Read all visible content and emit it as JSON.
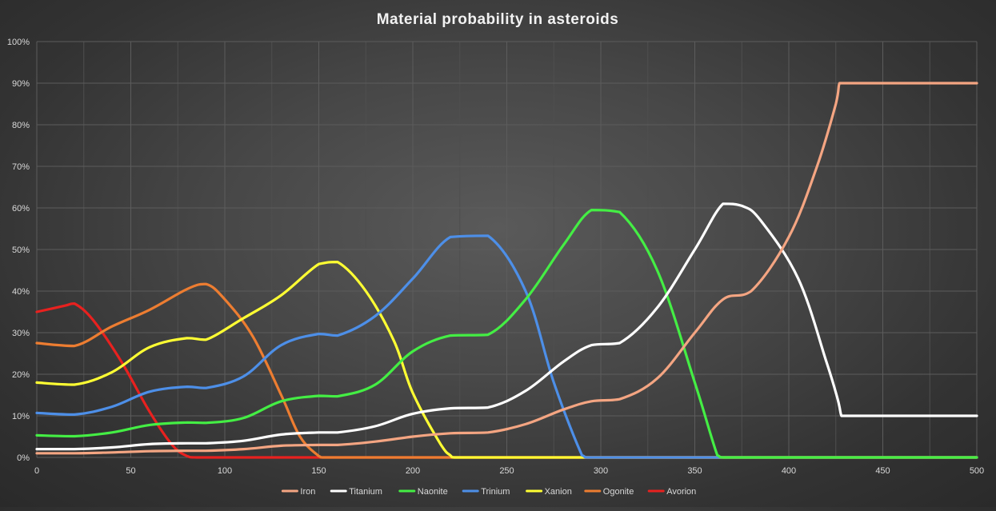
{
  "chart_data": {
    "type": "line",
    "title": "Material probability in asteroids",
    "xlabel": "",
    "ylabel": "",
    "xlim": [
      0,
      500
    ],
    "ylim": [
      0,
      100
    ],
    "x_ticks": [
      "0",
      "50",
      "100",
      "150",
      "200",
      "250",
      "300",
      "350",
      "400",
      "450",
      "500"
    ],
    "y_ticks": [
      "0%",
      "10%",
      "20%",
      "30%",
      "40%",
      "50%",
      "60%",
      "70%",
      "80%",
      "90%",
      "100%"
    ],
    "grid": true,
    "legend_position": "bottom",
    "series": [
      {
        "name": "Iron",
        "color": "#f4a582",
        "points": [
          [
            0,
            1
          ],
          [
            20,
            1
          ],
          [
            40,
            1.2
          ],
          [
            60,
            1.5
          ],
          [
            80,
            1.6
          ],
          [
            90,
            1.6
          ],
          [
            110,
            2
          ],
          [
            130,
            2.8
          ],
          [
            150,
            3
          ],
          [
            160,
            3
          ],
          [
            180,
            3.8
          ],
          [
            200,
            5
          ],
          [
            220,
            5.8
          ],
          [
            240,
            6
          ],
          [
            260,
            8
          ],
          [
            280,
            11.5
          ],
          [
            295,
            13.5
          ],
          [
            310,
            14
          ],
          [
            330,
            19
          ],
          [
            350,
            30
          ],
          [
            365,
            38
          ],
          [
            380,
            40
          ],
          [
            400,
            53
          ],
          [
            415,
            70
          ],
          [
            425,
            85
          ],
          [
            427,
            90
          ],
          [
            430,
            90
          ],
          [
            500,
            90
          ]
        ]
      },
      {
        "name": "Titanium",
        "color": "#ffffff",
        "points": [
          [
            0,
            2
          ],
          [
            20,
            2
          ],
          [
            40,
            2.4
          ],
          [
            60,
            3.2
          ],
          [
            80,
            3.4
          ],
          [
            90,
            3.4
          ],
          [
            110,
            4
          ],
          [
            130,
            5.5
          ],
          [
            150,
            6
          ],
          [
            160,
            6
          ],
          [
            180,
            7.5
          ],
          [
            200,
            10.5
          ],
          [
            220,
            11.8
          ],
          [
            240,
            12
          ],
          [
            260,
            16
          ],
          [
            280,
            23
          ],
          [
            295,
            27
          ],
          [
            310,
            27.5
          ],
          [
            330,
            36
          ],
          [
            350,
            50
          ],
          [
            365,
            61
          ],
          [
            375,
            60.5
          ],
          [
            385,
            57
          ],
          [
            405,
            43
          ],
          [
            420,
            23
          ],
          [
            426,
            14
          ],
          [
            428,
            10
          ],
          [
            430,
            10
          ],
          [
            500,
            10
          ]
        ]
      },
      {
        "name": "Naonite",
        "color": "#44ee44",
        "points": [
          [
            0,
            5.3
          ],
          [
            20,
            5.1
          ],
          [
            40,
            6
          ],
          [
            60,
            7.8
          ],
          [
            80,
            8.4
          ],
          [
            90,
            8.3
          ],
          [
            110,
            9.5
          ],
          [
            130,
            13.5
          ],
          [
            150,
            14.8
          ],
          [
            160,
            14.7
          ],
          [
            180,
            17.5
          ],
          [
            200,
            25.5
          ],
          [
            220,
            29.3
          ],
          [
            240,
            29.5
          ],
          [
            260,
            38
          ],
          [
            280,
            51
          ],
          [
            295,
            59.5
          ],
          [
            310,
            59
          ],
          [
            330,
            45
          ],
          [
            350,
            18
          ],
          [
            362,
            0.5
          ],
          [
            365,
            0
          ],
          [
            500,
            0
          ]
        ]
      },
      {
        "name": "Trinium",
        "color": "#4d8fe8",
        "points": [
          [
            0,
            10.7
          ],
          [
            20,
            10.3
          ],
          [
            40,
            12.2
          ],
          [
            60,
            15.8
          ],
          [
            80,
            17
          ],
          [
            90,
            16.7
          ],
          [
            110,
            19.5
          ],
          [
            130,
            27
          ],
          [
            150,
            29.7
          ],
          [
            160,
            29.3
          ],
          [
            180,
            34
          ],
          [
            200,
            43
          ],
          [
            220,
            53
          ],
          [
            240,
            53.3
          ],
          [
            260,
            40
          ],
          [
            275,
            18
          ],
          [
            290,
            0.5
          ],
          [
            293,
            0
          ],
          [
            500,
            0
          ]
        ]
      },
      {
        "name": "Xanion",
        "color": "#ffff33",
        "points": [
          [
            0,
            18
          ],
          [
            20,
            17.5
          ],
          [
            40,
            20.5
          ],
          [
            60,
            26.5
          ],
          [
            80,
            28.7
          ],
          [
            90,
            28.3
          ],
          [
            110,
            33.5
          ],
          [
            130,
            39
          ],
          [
            150,
            46.5
          ],
          [
            160,
            47
          ],
          [
            175,
            40
          ],
          [
            190,
            28
          ],
          [
            200,
            15.5
          ],
          [
            215,
            3
          ],
          [
            220,
            0.5
          ],
          [
            222,
            0
          ],
          [
            500,
            0
          ]
        ]
      },
      {
        "name": "Ogonite",
        "color": "#ed7d31",
        "points": [
          [
            0,
            27.5
          ],
          [
            20,
            26.8
          ],
          [
            40,
            31.5
          ],
          [
            60,
            35.5
          ],
          [
            80,
            40.5
          ],
          [
            90,
            41.7
          ],
          [
            100,
            38
          ],
          [
            115,
            29
          ],
          [
            130,
            15
          ],
          [
            140,
            5
          ],
          [
            150,
            0.3
          ],
          [
            152,
            0
          ],
          [
            500,
            0
          ]
        ]
      },
      {
        "name": "Avorion",
        "color": "#e8211f",
        "points": [
          [
            0,
            35
          ],
          [
            15,
            36.5
          ],
          [
            20,
            37
          ],
          [
            30,
            33
          ],
          [
            45,
            23
          ],
          [
            60,
            11
          ],
          [
            72,
            3
          ],
          [
            80,
            0.3
          ],
          [
            85,
            0
          ],
          [
            500,
            0
          ]
        ]
      }
    ]
  }
}
